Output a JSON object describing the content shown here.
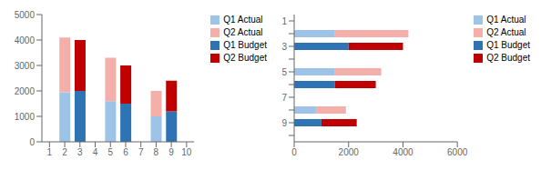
{
  "chart_data": [
    {
      "type": "bar",
      "stacked": true,
      "categories": [
        "1",
        "2",
        "3",
        "4",
        "5",
        "6",
        "7",
        "8",
        "9",
        "10"
      ],
      "series": [
        {
          "name": "Q1 Actual",
          "color": "#9DC3E6",
          "values": [
            null,
            1950,
            null,
            null,
            1600,
            null,
            null,
            1000,
            null,
            null
          ]
        },
        {
          "name": "Q2 Actual",
          "color": "#F4AFAB",
          "values": [
            null,
            2150,
            null,
            null,
            1700,
            null,
            null,
            1000,
            null,
            null
          ]
        },
        {
          "name": "Q1 Budget",
          "color": "#2E74B5",
          "values": [
            null,
            null,
            2000,
            null,
            null,
            1500,
            null,
            null,
            1200,
            null
          ]
        },
        {
          "name": "Q2 Budget",
          "color": "#C00000",
          "values": [
            null,
            null,
            2000,
            null,
            null,
            1500,
            null,
            null,
            1200,
            null
          ]
        }
      ],
      "ylim": [
        0,
        5000
      ],
      "yticks": [
        0,
        1000,
        2000,
        3000,
        4000,
        5000
      ],
      "legend": "right",
      "grid": false
    },
    {
      "type": "bar",
      "orientation": "horizontal",
      "stacked": true,
      "categories": [
        "1",
        null,
        "3",
        null,
        "5",
        null,
        "7",
        null,
        "9",
        null
      ],
      "series": [
        {
          "name": "Q1 Actual",
          "color": "#9DC3E6",
          "values": [
            null,
            1500,
            null,
            null,
            1500,
            null,
            null,
            800,
            null,
            null
          ]
        },
        {
          "name": "Q2 Actual",
          "color": "#F4AFAB",
          "values": [
            null,
            2700,
            null,
            null,
            1700,
            null,
            null,
            1100,
            null,
            null
          ]
        },
        {
          "name": "Q1 Budget",
          "color": "#2E74B5",
          "values": [
            null,
            null,
            2000,
            null,
            null,
            1500,
            null,
            null,
            1000,
            null
          ]
        },
        {
          "name": "Q2 Budget",
          "color": "#C00000",
          "values": [
            null,
            null,
            2000,
            null,
            null,
            1500,
            null,
            null,
            1300,
            null
          ]
        }
      ],
      "xlim": [
        0,
        6000
      ],
      "xticks": [
        0,
        2000,
        4000,
        6000
      ],
      "legend": "right",
      "grid": false
    }
  ]
}
